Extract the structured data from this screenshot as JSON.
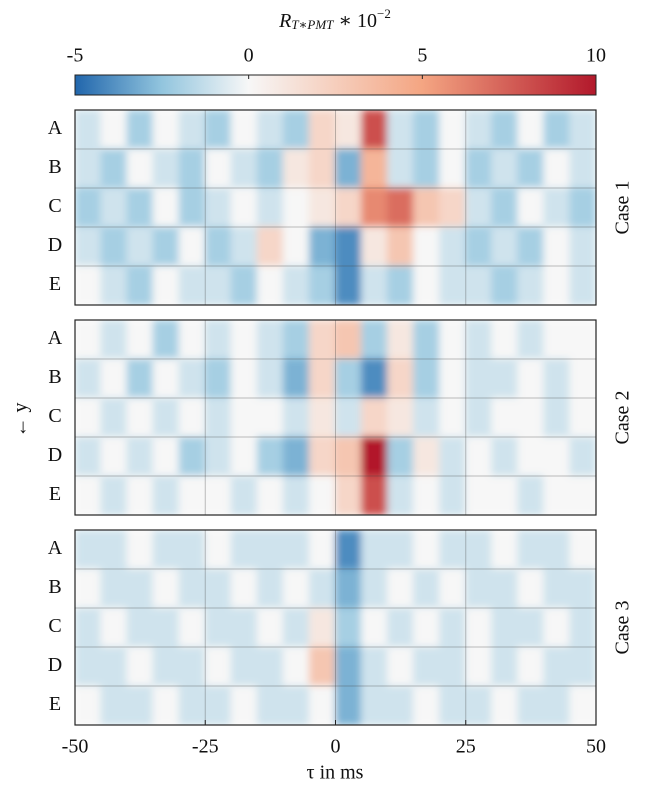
{
  "chart_data": {
    "type": "heatmap",
    "colorbar_label": {
      "base": "R",
      "sub": "T∗PMT",
      "mid": " ∗ 10",
      "sup": "−2"
    },
    "clim": [
      -5,
      10
    ],
    "cticks": [
      -5,
      0,
      5,
      10
    ],
    "colormap": [
      "#2166ac",
      "#92c5de",
      "#f7f7f7",
      "#f4a582",
      "#b2182b"
    ],
    "x_label": "τ in ms",
    "y_label": "← y",
    "xlim": [
      -50,
      50
    ],
    "xticks": [
      -50,
      -25,
      0,
      25,
      50
    ],
    "grid": true,
    "x": [
      -47.5,
      -42.5,
      -37.5,
      -32.5,
      -27.5,
      -22.5,
      -17.5,
      -12.5,
      -7.5,
      -2.5,
      2.5,
      7.5,
      12.5,
      17.5,
      22.5,
      27.5,
      32.5,
      37.5,
      42.5,
      47.5
    ],
    "panels": [
      {
        "name": "Case 1",
        "rows": [
          "A",
          "B",
          "C",
          "D",
          "E"
        ],
        "values": [
          [
            -1,
            0,
            -2,
            0,
            -1,
            -2,
            0,
            -1,
            -2,
            2,
            1,
            8,
            -1,
            -2,
            0,
            -1,
            -2,
            0,
            -2,
            -1
          ],
          [
            -1,
            -2,
            0,
            -1,
            -2,
            0,
            -1,
            -2,
            1,
            2,
            -3,
            4,
            -1,
            -2,
            0,
            -2,
            -1,
            -2,
            0,
            -1
          ],
          [
            -2,
            -1,
            -2,
            0,
            -2,
            -1,
            0,
            -1,
            0,
            1,
            2,
            6,
            7,
            3,
            2,
            -1,
            -2,
            0,
            -1,
            -2
          ],
          [
            -1,
            -2,
            -1,
            -2,
            0,
            -2,
            -1,
            2,
            0,
            -3,
            -4,
            1,
            3,
            0,
            -1,
            -2,
            -1,
            -2,
            0,
            -1
          ],
          [
            0,
            -1,
            -2,
            0,
            -1,
            -1,
            -2,
            0,
            -1,
            -2,
            -4,
            -1,
            -2,
            0,
            -1,
            -1,
            -2,
            -1,
            0,
            -1
          ]
        ]
      },
      {
        "name": "Case 2",
        "rows": [
          "A",
          "B",
          "C",
          "D",
          "E"
        ],
        "values": [
          [
            0,
            -1,
            0,
            -2,
            0,
            -1,
            0,
            -1,
            -2,
            2,
            3,
            -2,
            1,
            -2,
            0,
            -1,
            0,
            -1,
            0,
            0
          ],
          [
            -1,
            0,
            -2,
            0,
            -1,
            -2,
            0,
            -1,
            -3,
            2,
            -2,
            -4,
            2,
            -2,
            0,
            -1,
            -1,
            0,
            -1,
            0
          ],
          [
            0,
            -1,
            0,
            -1,
            0,
            -1,
            0,
            0,
            -1,
            1,
            -1,
            2,
            1,
            -1,
            0,
            -1,
            0,
            0,
            -1,
            0
          ],
          [
            -1,
            0,
            -1,
            0,
            -2,
            -1,
            0,
            -2,
            -3,
            2,
            3,
            10,
            -2,
            1,
            -1,
            0,
            -1,
            0,
            0,
            -1
          ],
          [
            0,
            -1,
            0,
            -1,
            0,
            0,
            -1,
            0,
            -1,
            0,
            2,
            8,
            -1,
            0,
            -1,
            0,
            0,
            -1,
            0,
            0
          ]
        ]
      },
      {
        "name": "Case 3",
        "rows": [
          "A",
          "B",
          "C",
          "D",
          "E"
        ],
        "values": [
          [
            -1,
            -1,
            0,
            -1,
            -1,
            0,
            -1,
            -1,
            -1,
            0,
            -4,
            -1,
            -1,
            0,
            -1,
            -1,
            0,
            -1,
            -1,
            0
          ],
          [
            0,
            -1,
            -1,
            0,
            -1,
            -1,
            0,
            -1,
            0,
            -1,
            -3,
            -1,
            0,
            -1,
            0,
            -1,
            -1,
            0,
            -1,
            -1
          ],
          [
            -1,
            0,
            -1,
            -1,
            0,
            -1,
            -1,
            0,
            -1,
            1,
            -2,
            0,
            -1,
            0,
            -1,
            0,
            -1,
            -1,
            0,
            -1
          ],
          [
            -1,
            -1,
            0,
            -1,
            -1,
            0,
            -1,
            -1,
            0,
            3,
            -3,
            -1,
            0,
            -1,
            -1,
            0,
            -1,
            0,
            -1,
            -1
          ],
          [
            0,
            -1,
            -1,
            0,
            -1,
            -1,
            0,
            -1,
            -1,
            0,
            -3,
            -1,
            -1,
            0,
            -1,
            -1,
            0,
            -1,
            -1,
            0
          ]
        ]
      }
    ]
  }
}
